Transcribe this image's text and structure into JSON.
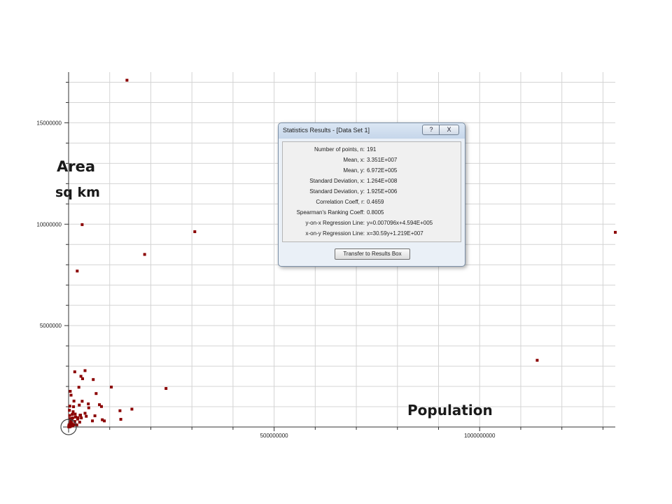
{
  "chart_data": {
    "type": "scatter",
    "xlabel": "Population",
    "ylabel": "Area",
    "ylabel_unit": "sq km",
    "xlim": [
      0,
      1330000000
    ],
    "ylim": [
      0,
      17500000
    ],
    "x_ticks": [
      500000000,
      1000000000
    ],
    "x_tick_labels": [
      "500000000",
      "1000000000"
    ],
    "y_ticks": [
      5000000,
      10000000,
      15000000
    ],
    "y_tick_labels": [
      "5000000",
      "10000000",
      "15000000"
    ],
    "grid": true,
    "marker_color": "#8b0000",
    "highlight_circle": {
      "x": 0,
      "y": 0
    },
    "series": [
      {
        "points": [
          [
            142000000,
            17100000
          ],
          [
            33000000,
            9980000
          ],
          [
            307000000,
            9630000
          ],
          [
            1330000000,
            9600000
          ],
          [
            185000000,
            8510000
          ],
          [
            21000000,
            7690000
          ],
          [
            1140000000,
            3290000
          ],
          [
            40000000,
            2780000
          ],
          [
            15000000,
            2720000
          ],
          [
            30000000,
            2500000
          ],
          [
            34000000,
            2380000
          ],
          [
            60000000,
            2340000
          ],
          [
            104000000,
            1970000
          ],
          [
            237000000,
            1900000
          ],
          [
            25000000,
            1960000
          ],
          [
            4000000,
            1760000
          ],
          [
            67000000,
            1650000
          ],
          [
            6000000,
            1570000
          ],
          [
            33000000,
            1270000
          ],
          [
            13000000,
            1280000
          ],
          [
            75000000,
            1100000
          ],
          [
            48000000,
            1140000
          ],
          [
            26000000,
            1080000
          ],
          [
            3000000,
            1030000
          ],
          [
            154000000,
            881000
          ],
          [
            125000000,
            803000
          ],
          [
            12000000,
            1000000
          ],
          [
            2000000,
            824000
          ],
          [
            49000000,
            947000
          ],
          [
            40000000,
            677000
          ],
          [
            80000000,
            1010000
          ],
          [
            29000000,
            587000
          ],
          [
            11000000,
            753000
          ],
          [
            16000000,
            637000
          ],
          [
            28000000,
            581000
          ],
          [
            17000000,
            491000
          ],
          [
            23000000,
            459000
          ],
          [
            9000000,
            623000
          ],
          [
            43000000,
            528000
          ],
          [
            58000000,
            301000
          ],
          [
            64000000,
            552000
          ],
          [
            27000000,
            239000
          ],
          [
            127000000,
            378000
          ],
          [
            82000000,
            357000
          ],
          [
            87000000,
            300000
          ],
          [
            31000000,
            447000
          ],
          [
            22000000,
            391000
          ],
          [
            15000000,
            274000
          ],
          [
            5000000,
            323000
          ],
          [
            8000000,
            406000
          ],
          [
            10000000,
            449000
          ],
          [
            2500000,
            565000
          ],
          [
            3500000,
            410000
          ],
          [
            6500000,
            268000
          ],
          [
            4500000,
            199000
          ],
          [
            7000000,
            197000
          ],
          [
            5500000,
            113000
          ],
          [
            9500000,
            131000
          ],
          [
            11000000,
            113000
          ],
          [
            2000000,
            110000
          ],
          [
            1500000,
            84000
          ],
          [
            3000000,
            92000
          ],
          [
            4000000,
            70000
          ],
          [
            1000000,
            100000
          ],
          [
            500000,
            30000
          ],
          [
            800000,
            28000
          ],
          [
            1200000,
            65000
          ],
          [
            2800000,
            45000
          ],
          [
            6000000,
            56000
          ],
          [
            7500000,
            84000
          ],
          [
            9000000,
            50000
          ],
          [
            10500000,
            88000
          ],
          [
            13000000,
            111000
          ],
          [
            16500000,
            120000
          ],
          [
            20000000,
            99000
          ],
          [
            4200000,
            25000
          ],
          [
            3300000,
            15000
          ],
          [
            1800000,
            11000
          ],
          [
            700000,
            5000
          ],
          [
            2300000,
            34000
          ]
        ]
      }
    ]
  },
  "labels": {
    "area": "Area",
    "sq_km": "sq km",
    "population": "Population"
  },
  "stats_window": {
    "title": "Statistics Results - [Data Set 1]",
    "help_label": "?",
    "close_label": "X",
    "rows": [
      {
        "name": "Number of points, n:",
        "value": "191"
      },
      {
        "name": "Mean, x:",
        "value": "3.351E+007"
      },
      {
        "name": "Mean, y:",
        "value": "6.972E+005"
      },
      {
        "name": "Standard Deviation, x:",
        "value": "1.264E+008"
      },
      {
        "name": "Standard Deviation, y:",
        "value": "1.925E+006"
      },
      {
        "name": "Correlation Coeff, r:",
        "value": "0.4659"
      },
      {
        "name": "Spearman's Ranking Coeff:",
        "value": "0.8005"
      },
      {
        "name": "y-on-x Regression Line:",
        "value": "y=0.007096x+4.594E+005"
      },
      {
        "name": "x-on-y Regression Line:",
        "value": "x=30.59y+1.219E+007"
      }
    ],
    "transfer_label": "Transfer to Results Box"
  }
}
